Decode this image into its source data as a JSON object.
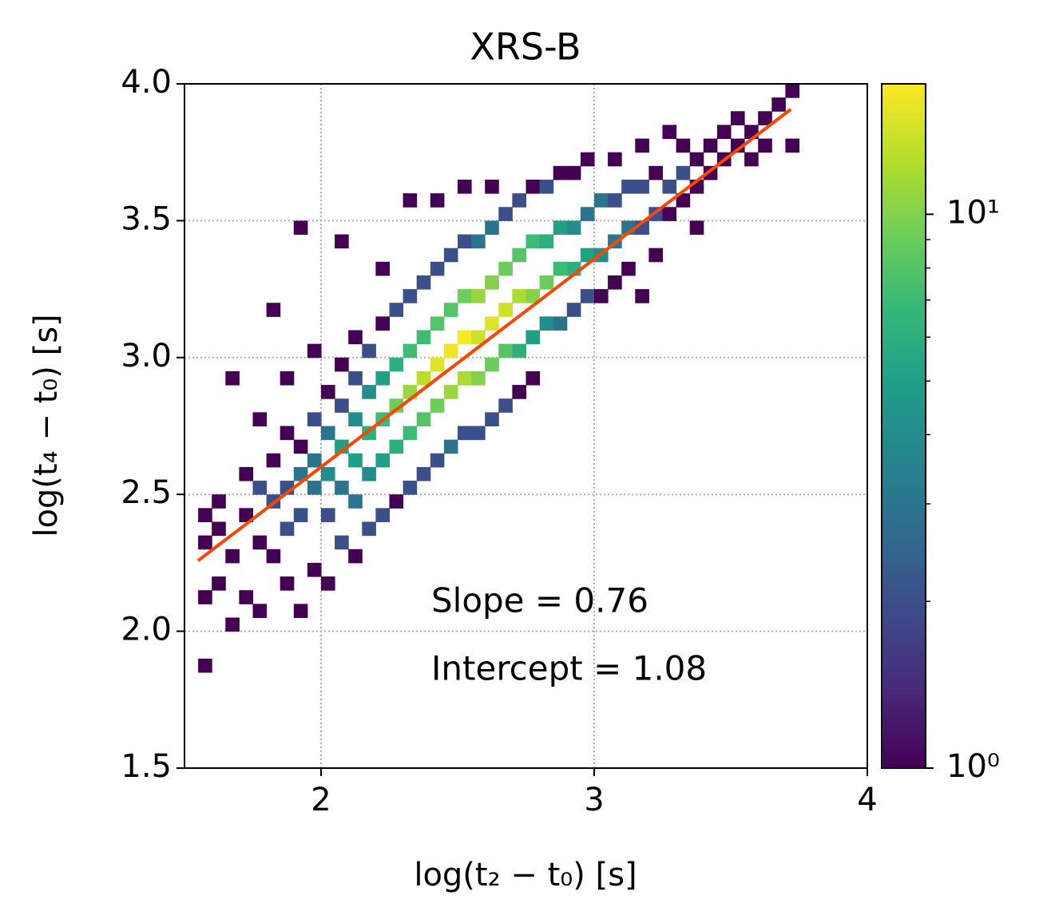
{
  "chart_data": {
    "type": "hist2d",
    "title": "XRS-B",
    "xlabel": "log(t₂ − t₀) [s]",
    "ylabel": "log(t₄ − t₀) [s]",
    "xlim": [
      1.5,
      4
    ],
    "ylim": [
      1.5,
      4
    ],
    "xticks": [
      2,
      3,
      4
    ],
    "yticks": [
      {
        "value": 1.5,
        "label": "1.5"
      },
      {
        "value": 2.0,
        "label": "2.0"
      },
      {
        "value": 2.5,
        "label": "2.5"
      },
      {
        "value": 3.0,
        "label": "3.0"
      },
      {
        "value": 3.5,
        "label": "3.5"
      },
      {
        "value": 4.0,
        "label": "4.0"
      }
    ],
    "grid": true,
    "bin_size": 0.05,
    "colormap": "viridis",
    "color_log_scale": true,
    "clim": [
      1,
      17.2
    ],
    "cticks": [
      {
        "value": 1,
        "label": "10⁰"
      },
      {
        "value": 10,
        "label": "10¹"
      }
    ],
    "cticks_minor": [
      2,
      3,
      4,
      5,
      6,
      7,
      8,
      9
    ],
    "cells": [
      [
        1.55,
        1.85,
        1
      ],
      [
        1.55,
        2.1,
        1
      ],
      [
        1.55,
        2.3,
        1
      ],
      [
        1.55,
        2.4,
        1
      ],
      [
        1.6,
        2.15,
        1
      ],
      [
        1.6,
        2.35,
        1
      ],
      [
        1.6,
        2.45,
        1
      ],
      [
        1.65,
        2.0,
        1
      ],
      [
        1.65,
        2.25,
        1
      ],
      [
        1.65,
        2.9,
        1
      ],
      [
        1.7,
        2.1,
        1
      ],
      [
        1.7,
        2.4,
        1
      ],
      [
        1.7,
        2.55,
        1
      ],
      [
        1.75,
        2.05,
        1
      ],
      [
        1.75,
        2.3,
        1
      ],
      [
        1.75,
        2.5,
        2
      ],
      [
        1.75,
        2.75,
        1
      ],
      [
        1.8,
        2.25,
        1
      ],
      [
        1.8,
        2.45,
        2
      ],
      [
        1.8,
        2.6,
        1
      ],
      [
        1.8,
        3.15,
        1
      ],
      [
        1.85,
        2.15,
        1
      ],
      [
        1.85,
        2.35,
        2
      ],
      [
        1.85,
        2.5,
        2
      ],
      [
        1.85,
        2.7,
        1
      ],
      [
        1.85,
        2.9,
        1
      ],
      [
        1.9,
        2.05,
        1
      ],
      [
        1.9,
        2.4,
        2
      ],
      [
        1.9,
        2.55,
        3
      ],
      [
        1.9,
        2.65,
        1
      ],
      [
        1.9,
        3.45,
        1
      ],
      [
        1.95,
        2.2,
        1
      ],
      [
        1.95,
        2.5,
        3
      ],
      [
        1.95,
        2.6,
        3
      ],
      [
        1.95,
        2.75,
        2
      ],
      [
        1.95,
        3.0,
        1
      ],
      [
        2.0,
        2.15,
        1
      ],
      [
        2.0,
        2.4,
        2
      ],
      [
        2.0,
        2.55,
        4
      ],
      [
        2.0,
        2.7,
        3
      ],
      [
        2.0,
        2.85,
        1
      ],
      [
        2.05,
        2.3,
        2
      ],
      [
        2.05,
        2.5,
        3
      ],
      [
        2.05,
        2.65,
        5
      ],
      [
        2.05,
        2.8,
        2
      ],
      [
        2.05,
        2.95,
        1
      ],
      [
        2.05,
        3.4,
        1
      ],
      [
        2.1,
        2.25,
        1
      ],
      [
        2.1,
        2.45,
        3
      ],
      [
        2.1,
        2.6,
        5
      ],
      [
        2.1,
        2.75,
        4
      ],
      [
        2.1,
        2.9,
        2
      ],
      [
        2.1,
        3.05,
        1
      ],
      [
        2.15,
        2.35,
        2
      ],
      [
        2.15,
        2.55,
        4
      ],
      [
        2.15,
        2.7,
        6
      ],
      [
        2.15,
        2.85,
        4
      ],
      [
        2.15,
        3.0,
        2
      ],
      [
        2.2,
        2.4,
        2
      ],
      [
        2.2,
        2.6,
        5
      ],
      [
        2.2,
        2.75,
        7
      ],
      [
        2.2,
        2.9,
        5
      ],
      [
        2.2,
        3.1,
        1
      ],
      [
        2.2,
        3.3,
        1
      ],
      [
        2.25,
        2.45,
        1
      ],
      [
        2.25,
        2.65,
        6
      ],
      [
        2.25,
        2.8,
        9
      ],
      [
        2.25,
        2.95,
        6
      ],
      [
        2.25,
        3.15,
        2
      ],
      [
        2.3,
        2.5,
        2
      ],
      [
        2.3,
        2.7,
        7
      ],
      [
        2.3,
        2.85,
        11
      ],
      [
        2.3,
        3.0,
        7
      ],
      [
        2.3,
        3.2,
        2
      ],
      [
        2.3,
        3.55,
        1
      ],
      [
        2.35,
        2.55,
        2
      ],
      [
        2.35,
        2.75,
        8
      ],
      [
        2.35,
        2.9,
        13
      ],
      [
        2.35,
        3.05,
        7
      ],
      [
        2.35,
        3.25,
        2
      ],
      [
        2.4,
        2.6,
        2
      ],
      [
        2.4,
        2.8,
        9
      ],
      [
        2.4,
        2.95,
        15
      ],
      [
        2.4,
        3.1,
        8
      ],
      [
        2.4,
        3.3,
        2
      ],
      [
        2.4,
        3.55,
        1
      ],
      [
        2.45,
        2.65,
        3
      ],
      [
        2.45,
        2.85,
        11
      ],
      [
        2.45,
        3.0,
        16
      ],
      [
        2.45,
        3.15,
        8
      ],
      [
        2.45,
        3.35,
        2
      ],
      [
        2.5,
        2.7,
        2
      ],
      [
        2.5,
        2.9,
        12
      ],
      [
        2.5,
        3.05,
        17
      ],
      [
        2.5,
        3.2,
        9
      ],
      [
        2.5,
        3.4,
        2
      ],
      [
        2.5,
        3.6,
        1
      ],
      [
        2.55,
        2.7,
        2
      ],
      [
        2.55,
        2.9,
        10
      ],
      [
        2.55,
        3.05,
        14
      ],
      [
        2.55,
        3.2,
        11
      ],
      [
        2.55,
        3.4,
        3
      ],
      [
        2.6,
        2.75,
        2
      ],
      [
        2.6,
        2.95,
        9
      ],
      [
        2.6,
        3.1,
        15
      ],
      [
        2.6,
        3.25,
        10
      ],
      [
        2.6,
        3.45,
        3
      ],
      [
        2.6,
        3.6,
        1
      ],
      [
        2.65,
        2.8,
        2
      ],
      [
        2.65,
        3.0,
        8
      ],
      [
        2.65,
        3.15,
        14
      ],
      [
        2.65,
        3.3,
        9
      ],
      [
        2.65,
        3.5,
        2
      ],
      [
        2.7,
        2.85,
        1
      ],
      [
        2.7,
        3.0,
        6
      ],
      [
        2.7,
        3.2,
        12
      ],
      [
        2.7,
        3.35,
        8
      ],
      [
        2.7,
        3.55,
        2
      ],
      [
        2.75,
        2.9,
        1
      ],
      [
        2.75,
        3.05,
        5
      ],
      [
        2.75,
        3.2,
        10
      ],
      [
        2.75,
        3.4,
        7
      ],
      [
        2.75,
        3.6,
        1
      ],
      [
        2.8,
        3.1,
        4
      ],
      [
        2.8,
        3.25,
        9
      ],
      [
        2.8,
        3.4,
        6
      ],
      [
        2.8,
        3.6,
        2
      ],
      [
        2.85,
        3.1,
        3
      ],
      [
        2.85,
        3.3,
        7
      ],
      [
        2.85,
        3.45,
        5
      ],
      [
        2.85,
        3.65,
        1
      ],
      [
        2.9,
        3.15,
        2
      ],
      [
        2.9,
        3.3,
        6
      ],
      [
        2.9,
        3.45,
        4
      ],
      [
        2.9,
        3.65,
        1
      ],
      [
        2.95,
        3.2,
        2
      ],
      [
        2.95,
        3.35,
        5
      ],
      [
        2.95,
        3.5,
        3
      ],
      [
        2.95,
        3.7,
        1
      ],
      [
        3.0,
        3.2,
        1
      ],
      [
        3.0,
        3.35,
        4
      ],
      [
        3.0,
        3.55,
        3
      ],
      [
        3.05,
        3.25,
        1
      ],
      [
        3.05,
        3.4,
        3
      ],
      [
        3.05,
        3.55,
        2
      ],
      [
        3.05,
        3.7,
        1
      ],
      [
        3.1,
        3.3,
        1
      ],
      [
        3.1,
        3.45,
        3
      ],
      [
        3.1,
        3.6,
        2
      ],
      [
        3.15,
        3.2,
        1
      ],
      [
        3.15,
        3.45,
        2
      ],
      [
        3.15,
        3.6,
        2
      ],
      [
        3.15,
        3.75,
        1
      ],
      [
        3.2,
        3.35,
        1
      ],
      [
        3.2,
        3.5,
        2
      ],
      [
        3.2,
        3.65,
        1
      ],
      [
        3.25,
        3.5,
        1
      ],
      [
        3.25,
        3.6,
        2
      ],
      [
        3.25,
        3.8,
        1
      ],
      [
        3.3,
        3.55,
        1
      ],
      [
        3.3,
        3.65,
        2
      ],
      [
        3.3,
        3.75,
        1
      ],
      [
        3.35,
        3.45,
        1
      ],
      [
        3.35,
        3.6,
        1
      ],
      [
        3.35,
        3.7,
        1
      ],
      [
        3.4,
        3.65,
        1
      ],
      [
        3.4,
        3.75,
        1
      ],
      [
        3.45,
        3.7,
        1
      ],
      [
        3.45,
        3.8,
        1
      ],
      [
        3.5,
        3.75,
        1
      ],
      [
        3.5,
        3.85,
        1
      ],
      [
        3.55,
        3.7,
        1
      ],
      [
        3.55,
        3.8,
        1
      ],
      [
        3.6,
        3.75,
        1
      ],
      [
        3.6,
        3.85,
        1
      ],
      [
        3.65,
        3.9,
        1
      ],
      [
        3.7,
        3.75,
        1
      ],
      [
        3.7,
        3.95,
        1
      ]
    ],
    "fit": {
      "color": "#ff4500",
      "x": [
        1.55,
        3.72
      ],
      "y": [
        2.258,
        3.907
      ]
    },
    "annotations": [
      "Slope = 0.76",
      "Intercept = 1.08"
    ]
  }
}
